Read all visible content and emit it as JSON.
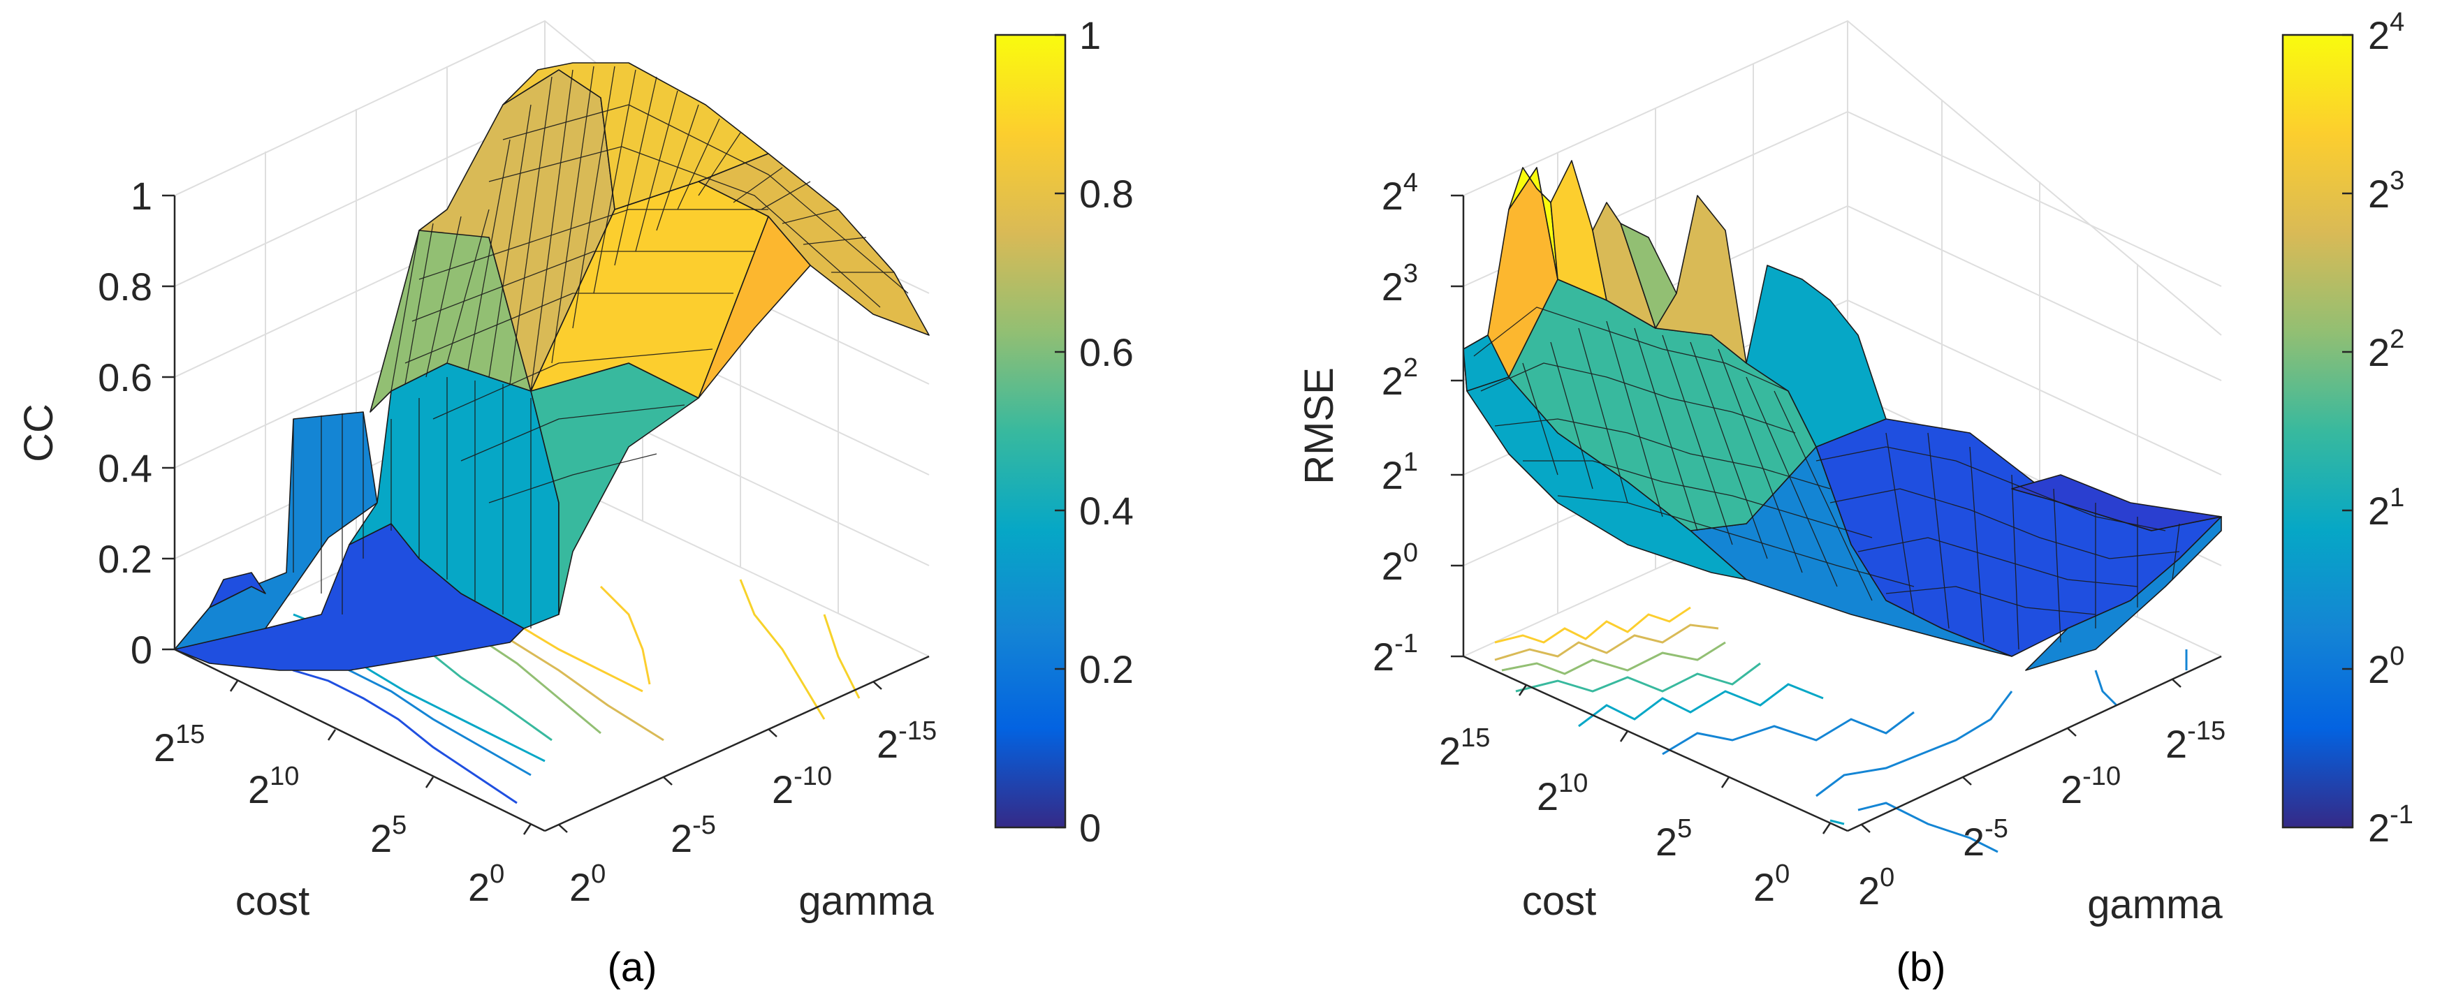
{
  "chart_data": [
    {
      "type": "surface3d",
      "panel_label": "(a)",
      "zlabel": "CC",
      "xlabel": "cost",
      "ylabel": "gamma",
      "zlim": [
        0,
        1
      ],
      "z_ticks": [
        "0",
        "0.2",
        "0.4",
        "0.6",
        "0.8",
        "1"
      ],
      "cost_ticks": [
        {
          "base": "2",
          "exp": "15"
        },
        {
          "base": "2",
          "exp": "10"
        },
        {
          "base": "2",
          "exp": "5"
        },
        {
          "base": "2",
          "exp": "0"
        }
      ],
      "gamma_ticks": [
        {
          "base": "2",
          "exp": "0"
        },
        {
          "base": "2",
          "exp": "-5"
        },
        {
          "base": "2",
          "exp": "-10"
        },
        {
          "base": "2",
          "exp": "-15"
        }
      ],
      "colorbar": {
        "ticks": [
          {
            "base": "0",
            "exp": ""
          },
          {
            "base": "0.2",
            "exp": ""
          },
          {
            "base": "0.4",
            "exp": ""
          },
          {
            "base": "0.6",
            "exp": ""
          },
          {
            "base": "0.8",
            "exp": ""
          },
          {
            "base": "1",
            "exp": ""
          }
        ]
      },
      "grid": true,
      "colormap": "parula",
      "surface_peak": 0.95,
      "surface_floor": 0.02
    },
    {
      "type": "surface3d",
      "panel_label": "(b)",
      "zlabel": "RMSE",
      "xlabel": "cost",
      "ylabel": "gamma",
      "zlim": [
        "2^-1",
        "2^4"
      ],
      "z_ticks": [
        {
          "base": "2",
          "exp": "-1"
        },
        {
          "base": "2",
          "exp": "0"
        },
        {
          "base": "2",
          "exp": "1"
        },
        {
          "base": "2",
          "exp": "2"
        },
        {
          "base": "2",
          "exp": "3"
        },
        {
          "base": "2",
          "exp": "4"
        }
      ],
      "cost_ticks": [
        {
          "base": "2",
          "exp": "15"
        },
        {
          "base": "2",
          "exp": "10"
        },
        {
          "base": "2",
          "exp": "5"
        },
        {
          "base": "2",
          "exp": "0"
        }
      ],
      "gamma_ticks": [
        {
          "base": "2",
          "exp": "0"
        },
        {
          "base": "2",
          "exp": "-5"
        },
        {
          "base": "2",
          "exp": "-10"
        },
        {
          "base": "2",
          "exp": "-15"
        }
      ],
      "colorbar": {
        "ticks": [
          {
            "base": "2",
            "exp": "-1"
          },
          {
            "base": "2",
            "exp": "0"
          },
          {
            "base": "2",
            "exp": "1"
          },
          {
            "base": "2",
            "exp": "2"
          },
          {
            "base": "2",
            "exp": "3"
          },
          {
            "base": "2",
            "exp": "4"
          }
        ]
      },
      "grid": true,
      "colormap": "parula",
      "surface_peak": "2^4",
      "surface_floor": "2^-0.5"
    }
  ],
  "colors": {
    "parula": [
      "#352a87",
      "#0363e1",
      "#1485d4",
      "#06a7c6",
      "#38b99e",
      "#92bf73",
      "#d9ba56",
      "#fcce2e",
      "#f9fb0e"
    ],
    "edge": "#1a1a1a",
    "axis": "#262626",
    "grid": "#dedede"
  }
}
